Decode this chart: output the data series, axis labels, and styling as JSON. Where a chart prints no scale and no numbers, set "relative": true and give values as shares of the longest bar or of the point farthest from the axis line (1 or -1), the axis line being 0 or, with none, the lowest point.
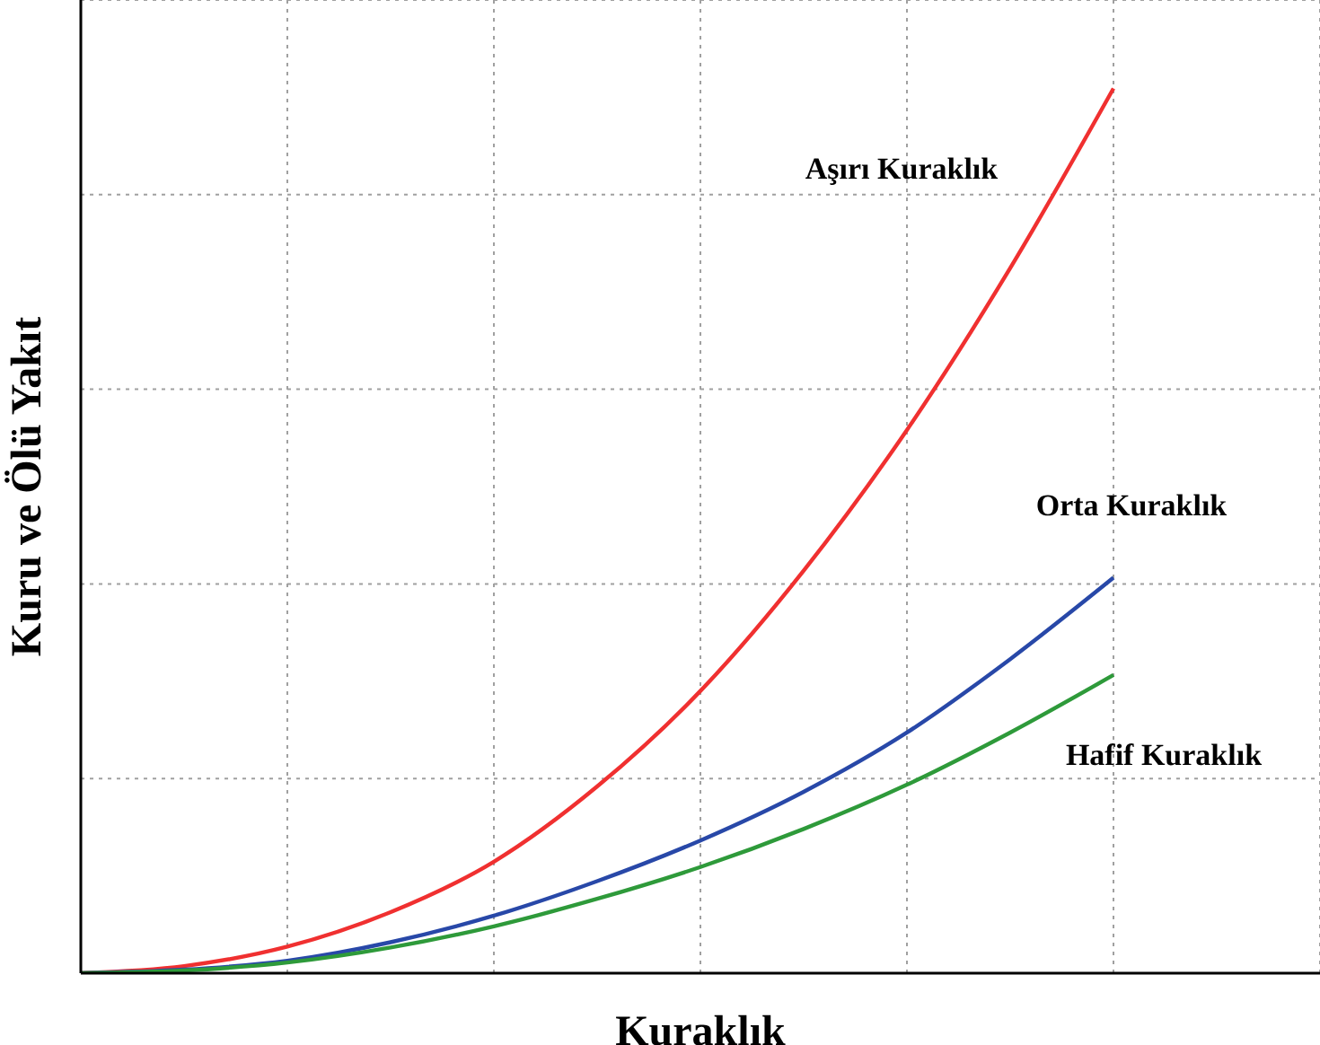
{
  "chart_data": {
    "type": "line",
    "relative": true,
    "xlabel": "Kuraklık",
    "ylabel": "Kuru ve Ölü Yakıt",
    "grid": true,
    "categories": [
      null,
      null,
      null,
      null,
      null,
      null,
      null,
      null,
      null,
      null,
      null,
      null,
      null
    ],
    "series": [
      {
        "name": "Aşırı Kuraklık",
        "color": "#f03030",
        "values": [
          0,
          0.008,
          0.03,
          0.069,
          0.126,
          0.211,
          0.319,
          0.455,
          0.614,
          0.797,
          1,
          null,
          null
        ]
      },
      {
        "name": "Orta Kuraklık",
        "color": "#2848a8",
        "values": [
          0,
          0.004,
          0.014,
          0.035,
          0.065,
          0.104,
          0.15,
          0.205,
          0.272,
          0.355,
          0.447,
          null,
          null
        ]
      },
      {
        "name": "Hafif Kuraklık",
        "color": "#2e9a3a",
        "values": [
          0,
          0.003,
          0.012,
          0.029,
          0.053,
          0.084,
          0.12,
          0.163,
          0.213,
          0.272,
          0.337,
          null,
          null
        ]
      }
    ]
  }
}
